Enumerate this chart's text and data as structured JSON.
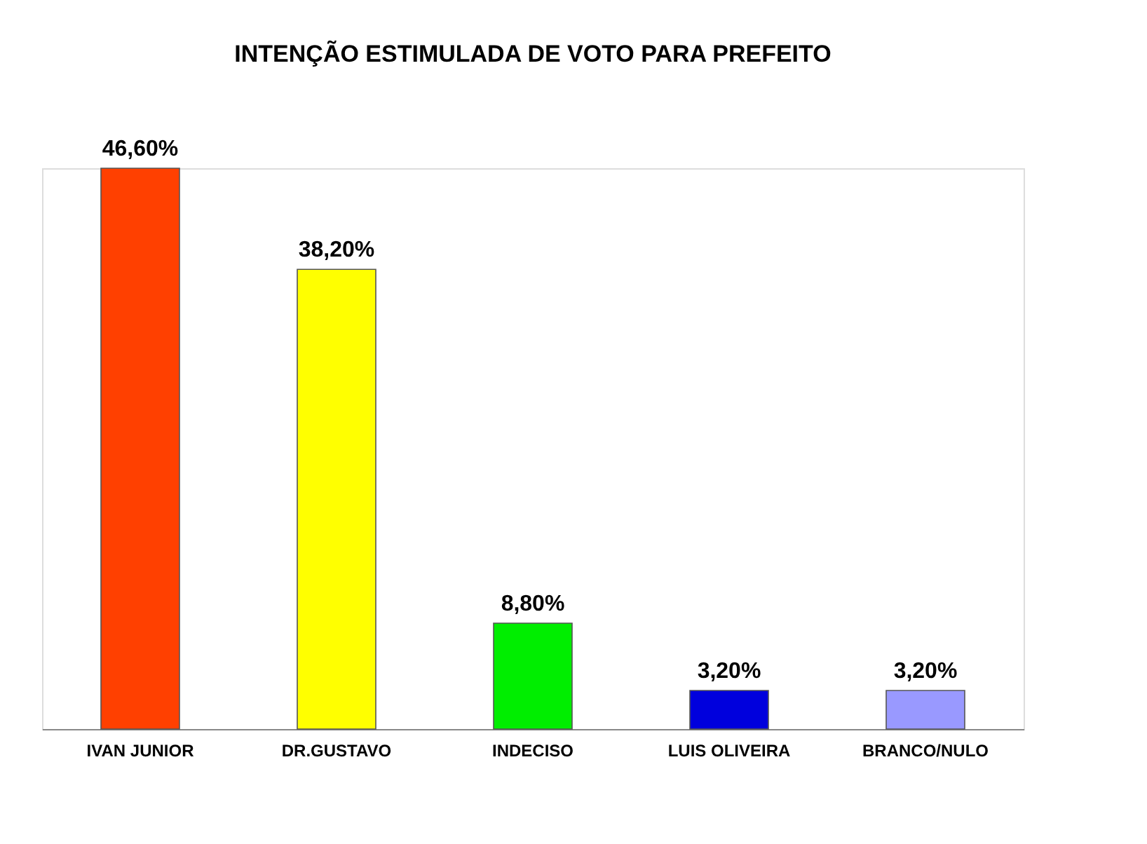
{
  "chart_data": {
    "type": "bar",
    "title": "INTENÇÃO ESTIMULADA DE VOTO PARA PREFEITO",
    "categories": [
      "IVAN JUNIOR",
      "DR.GUSTAVO",
      "INDECISO",
      "LUIS OLIVEIRA",
      "BRANCO/NULO"
    ],
    "values": [
      46.6,
      38.2,
      8.8,
      3.2,
      3.2
    ],
    "value_labels": [
      "46,60%",
      "38,20%",
      "8,80%",
      "3,20%",
      "3,20%"
    ],
    "colors": [
      "#ff4000",
      "#ffff00",
      "#00ee00",
      "#0000dd",
      "#9999ff"
    ],
    "grid": false
  }
}
